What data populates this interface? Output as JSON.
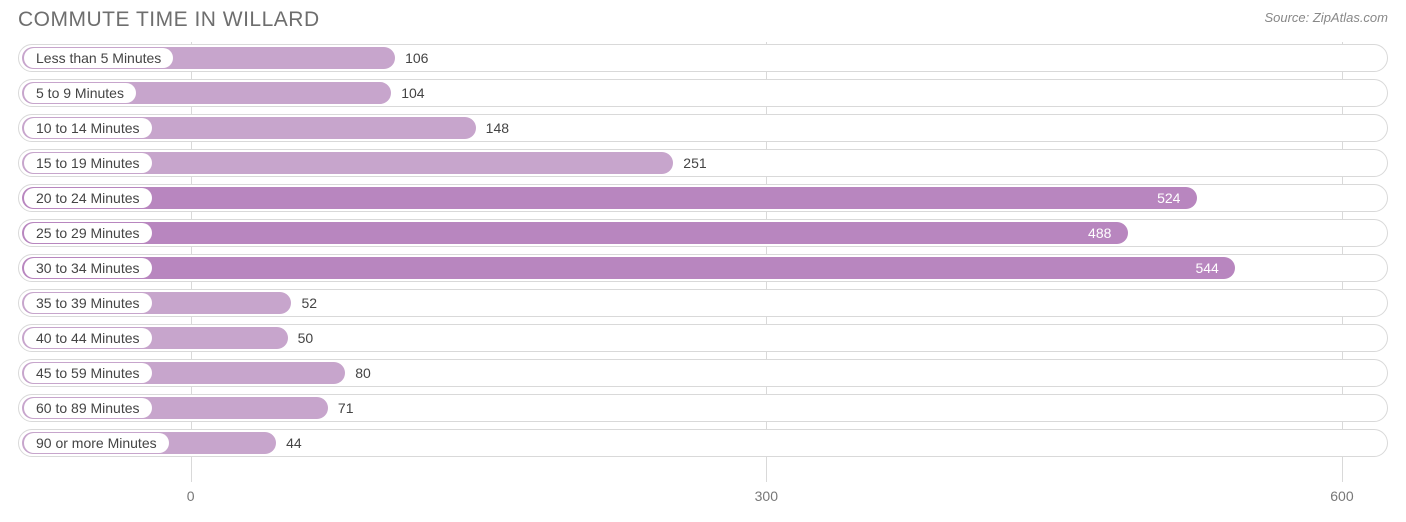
{
  "title": "COMMUTE TIME IN WILLARD",
  "source_prefix": "Source: ",
  "source_name": "ZipAtlas.com",
  "chart": {
    "type": "bar-horizontal",
    "bar_color": "#c7a5cc",
    "bar_color_dark": "#b886bf",
    "track_border": "#d9d9d9",
    "grid_color": "#d9d9d9",
    "background": "#ffffff",
    "label_fontsize": 14,
    "value_fontsize": 14,
    "title_fontsize": 21,
    "title_color": "#6e6e6e",
    "value_color_outside": "#444444",
    "value_color_inside": "#ffffff",
    "x_min": -90,
    "x_max": 624,
    "x_ticks": [
      0,
      300,
      600
    ],
    "bar_origin": 3,
    "categories": [
      "Less than 5 Minutes",
      "5 to 9 Minutes",
      "10 to 14 Minutes",
      "15 to 19 Minutes",
      "20 to 24 Minutes",
      "25 to 29 Minutes",
      "30 to 34 Minutes",
      "35 to 39 Minutes",
      "40 to 44 Minutes",
      "45 to 59 Minutes",
      "60 to 89 Minutes",
      "90 or more Minutes"
    ],
    "values": [
      106,
      104,
      148,
      251,
      524,
      488,
      544,
      52,
      50,
      80,
      71,
      44
    ],
    "value_inside_threshold": 420
  }
}
